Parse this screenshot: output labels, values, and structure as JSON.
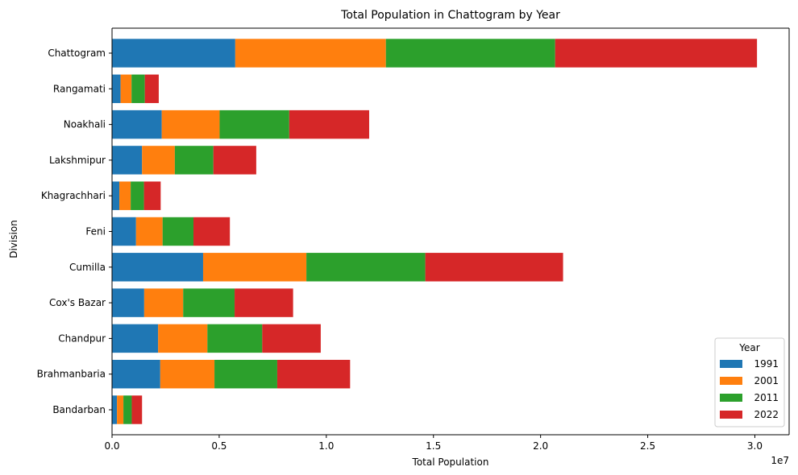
{
  "chart_data": {
    "type": "bar",
    "orientation": "horizontal",
    "stacked": true,
    "title": "Total Population in Chattogram by Year",
    "xlabel": "Total Population",
    "ylabel": "Division",
    "x_offset_label": "1e7",
    "xlim": [
      0,
      31600000
    ],
    "x_ticks": [
      0,
      5000000,
      10000000,
      15000000,
      20000000,
      25000000,
      30000000
    ],
    "x_tick_labels": [
      "0.0",
      "0.5",
      "1.0",
      "1.5",
      "2.0",
      "2.5",
      "3.0"
    ],
    "grid": false,
    "categories": [
      "Bandarban",
      "Brahmanbaria",
      "Chandpur",
      "Cox's Bazar",
      "Cumilla",
      "Feni",
      "Khagrachhari",
      "Lakshmipur",
      "Noakhali",
      "Rangamati",
      "Chattogram"
    ],
    "legend": {
      "title": "Year",
      "placement": "lower-right"
    },
    "series": [
      {
        "name": "1991",
        "color": "#1f77b4",
        "values": [
          230000,
          2250000,
          2150000,
          1500000,
          4250000,
          1120000,
          340000,
          1400000,
          2320000,
          400000,
          5750000
        ]
      },
      {
        "name": "2001",
        "color": "#ff7f0e",
        "values": [
          300000,
          2530000,
          2300000,
          1820000,
          4820000,
          1240000,
          530000,
          1530000,
          2700000,
          510000,
          7030000
        ]
      },
      {
        "name": "2011",
        "color": "#2ca02c",
        "values": [
          390000,
          2930000,
          2560000,
          2400000,
          5550000,
          1440000,
          620000,
          1800000,
          3250000,
          620000,
          7900000
        ]
      },
      {
        "name": "2022",
        "color": "#d62728",
        "values": [
          480000,
          3400000,
          2730000,
          2730000,
          6430000,
          1700000,
          780000,
          2000000,
          3730000,
          650000,
          9420000
        ]
      }
    ]
  }
}
